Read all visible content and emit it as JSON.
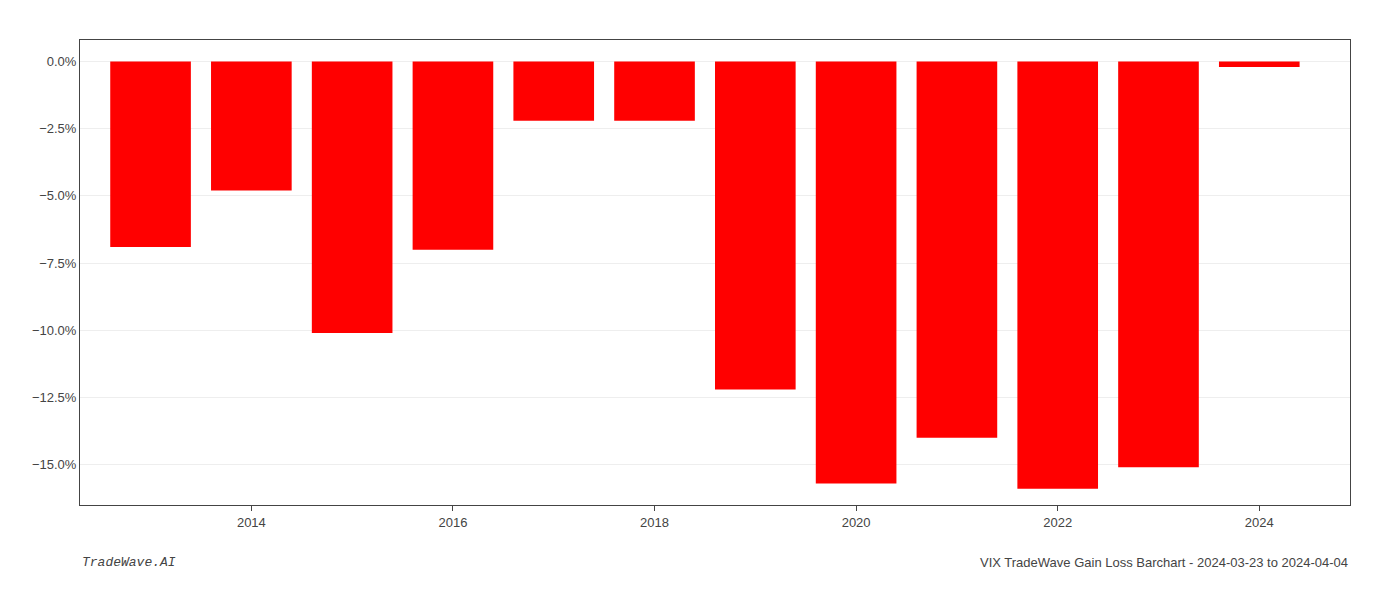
{
  "chart_data": {
    "type": "bar",
    "x": [
      2013,
      2014,
      2015,
      2016,
      2017,
      2018,
      2019,
      2020,
      2021,
      2022,
      2023,
      2024
    ],
    "values": [
      -6.9,
      -4.8,
      -10.1,
      -7.0,
      -2.2,
      -2.2,
      -12.2,
      -15.7,
      -14.0,
      -15.9,
      -15.1,
      -0.2
    ],
    "color": "#ff0000",
    "xlim": [
      2012.3,
      2024.9
    ],
    "xticks": [
      2014,
      2016,
      2018,
      2020,
      2022,
      2024
    ],
    "ylim": [
      -16.5,
      0.8
    ],
    "yticks": [
      {
        "value": 0.0,
        "label": "0.0%"
      },
      {
        "value": -2.5,
        "label": "−2.5%"
      },
      {
        "value": -5.0,
        "label": "−5.0%"
      },
      {
        "value": -7.5,
        "label": "−7.5%"
      },
      {
        "value": -10.0,
        "label": "−10.0%"
      },
      {
        "value": -12.5,
        "label": "−12.5%"
      },
      {
        "value": -15.0,
        "label": "−15.0%"
      }
    ],
    "grid": true,
    "annotations": [
      "TradeWave.AI",
      "VIX TradeWave Gain Loss Barchart - 2024-03-23 to 2024-04-04"
    ]
  }
}
